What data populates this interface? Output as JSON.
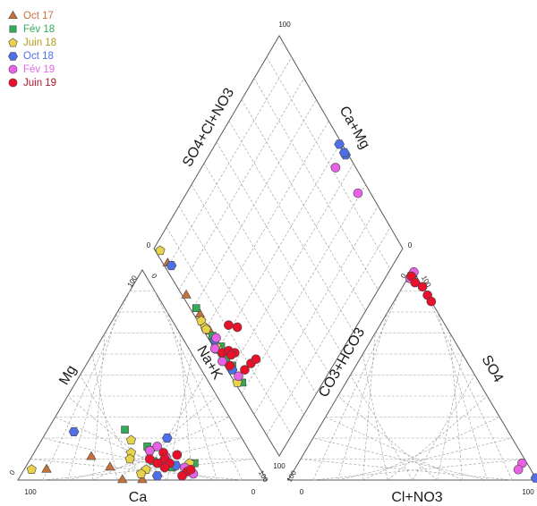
{
  "chart_data": {
    "type": "scatter",
    "title": "",
    "axis_labels": {
      "cations_left": "Mg",
      "cations_bottom": "Ca",
      "cations_right": "Na+K",
      "anions_left": "CO3+HCO3",
      "anions_right": "SO4",
      "anions_bottom": "Cl+NO3",
      "diamond_upper_left": "SO4+Cl+NO3",
      "diamond_upper_right": "Ca+Mg"
    },
    "tick_labels": {
      "zero": "0",
      "hundred": "100"
    },
    "legend_placement": "top-left",
    "series": [
      {
        "name": "Oct 17",
        "marker": "triangle",
        "color": "#c8703a",
        "cations": [
          [
            0.11,
            0.65,
            0.24
          ],
          [
            0.06,
            0.6,
            0.34
          ],
          [
            0.0,
            0.5,
            0.5
          ],
          [
            0.0,
            0.58,
            0.42
          ],
          [
            0.05,
            0.86,
            0.09
          ]
        ],
        "anions": [
          [
            0.98,
            0.01,
            0.01
          ],
          [
            0.97,
            0.02,
            0.01
          ]
        ]
      },
      {
        "name": "Fév 18",
        "marker": "square",
        "color": "#33aa55",
        "cations": [
          [
            0.08,
            0.25,
            0.67
          ],
          [
            0.24,
            0.45,
            0.31
          ],
          [
            0.09,
            0.41,
            0.5
          ],
          [
            0.08,
            0.37,
            0.55
          ],
          [
            0.06,
            0.35,
            0.59
          ],
          [
            0.16,
            0.4,
            0.44
          ]
        ],
        "anions": [
          [
            0.96,
            0.03,
            0.01
          ],
          [
            0.97,
            0.02,
            0.01
          ]
        ]
      },
      {
        "name": "Juin 18",
        "marker": "pentagon",
        "color": "#e8d24a",
        "cations": [
          [
            0.05,
            0.92,
            0.03
          ],
          [
            0.19,
            0.45,
            0.36
          ],
          [
            0.13,
            0.48,
            0.39
          ],
          [
            0.08,
            0.27,
            0.65
          ],
          [
            0.05,
            0.46,
            0.49
          ],
          [
            0.03,
            0.49,
            0.48
          ],
          [
            0.1,
            0.5,
            0.4
          ]
        ],
        "anions": [
          [
            0.98,
            0.01,
            0.01
          ]
        ]
      },
      {
        "name": "Oct 18",
        "marker": "hexagon",
        "color": "#4f6fe8",
        "cations": [
          [
            0.23,
            0.66,
            0.11
          ],
          [
            0.02,
            0.43,
            0.55
          ],
          [
            0.14,
            0.4,
            0.46
          ],
          [
            0.1,
            0.36,
            0.54
          ],
          [
            0.07,
            0.33,
            0.6
          ],
          [
            0.2,
            0.3,
            0.5
          ]
        ],
        "anions": [
          [
            0.97,
            0.02,
            0.01
          ],
          [
            0.01,
            0.0,
            0.99
          ]
        ]
      },
      {
        "name": "Fév 19",
        "marker": "circle",
        "color": "#e862e8",
        "cations": [
          [
            0.16,
            0.36,
            0.48
          ],
          [
            0.06,
            0.3,
            0.64
          ],
          [
            0.11,
            0.35,
            0.54
          ],
          [
            0.03,
            0.28,
            0.69
          ],
          [
            0.08,
            0.38,
            0.54
          ],
          [
            0.14,
            0.4,
            0.46
          ]
        ],
        "anions": [
          [
            0.99,
            0.0,
            0.01
          ],
          [
            0.96,
            0.03,
            0.01
          ],
          [
            0.08,
            0.02,
            0.9
          ],
          [
            0.05,
            0.05,
            0.9
          ]
        ]
      },
      {
        "name": "Juin 19",
        "marker": "circle",
        "color": "#e8102a",
        "cations": [
          [
            0.13,
            0.35,
            0.52
          ],
          [
            0.1,
            0.36,
            0.54
          ],
          [
            0.08,
            0.35,
            0.57
          ],
          [
            0.04,
            0.3,
            0.66
          ],
          [
            0.08,
            0.4,
            0.52
          ],
          [
            0.12,
            0.3,
            0.58
          ],
          [
            0.06,
            0.38,
            0.56
          ],
          [
            0.02,
            0.33,
            0.65
          ],
          [
            0.1,
            0.42,
            0.48
          ],
          [
            0.05,
            0.28,
            0.67
          ]
        ],
        "anions": [
          [
            0.97,
            0.02,
            0.01
          ],
          [
            0.94,
            0.02,
            0.04
          ],
          [
            0.92,
            0.0,
            0.08
          ],
          [
            0.88,
            0.0,
            0.12
          ],
          [
            0.85,
            0.0,
            0.15
          ]
        ]
      }
    ]
  }
}
